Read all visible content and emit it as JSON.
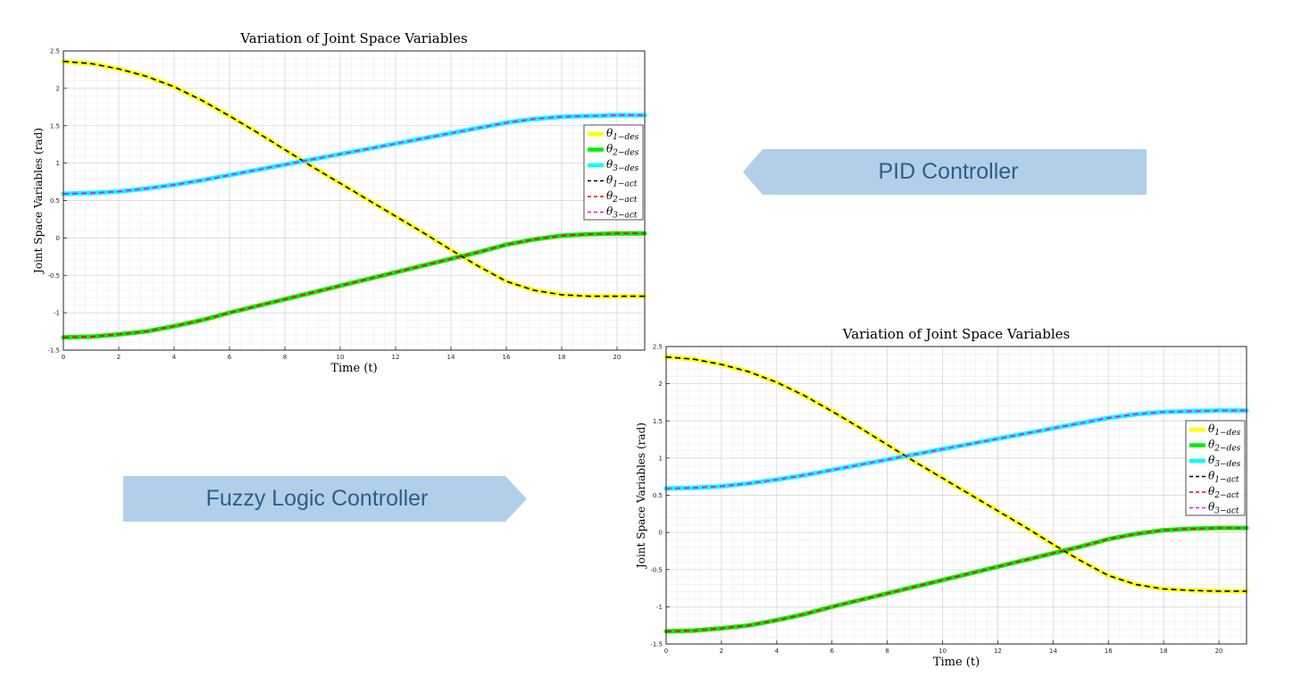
{
  "labels": {
    "pid": "PID Controller",
    "fuzzy": "Fuzzy Logic Controller"
  },
  "colors": {
    "arrow_fill": "#b2cfea",
    "arrow_text": "#2f5f86",
    "theta1_des": "#ffff00",
    "theta2_des": "#00ee00",
    "theta3_des": "#00ffff",
    "theta1_act": "#000000",
    "theta2_act": "#ff0000",
    "theta3_act": "#ff00ff"
  },
  "chart_data": [
    {
      "type": "line",
      "title": "Variation of Joint Space Variables",
      "xlabel": "Time (t)",
      "ylabel": "Joint Space Variables (rad)",
      "xlim": [
        0,
        21
      ],
      "ylim": [
        -1.5,
        2.5
      ],
      "xticks": [
        "0",
        "2",
        "4",
        "6",
        "8",
        "10",
        "12",
        "14",
        "16",
        "18",
        "20"
      ],
      "yticks": [
        "-1.5",
        "-1",
        "-0.5",
        "0",
        "0.5",
        "1",
        "1.5",
        "2",
        "2.5"
      ],
      "grid": true,
      "legend_position": "right",
      "x": [
        0,
        1,
        2,
        3,
        4,
        5,
        6,
        7,
        8,
        9,
        10,
        11,
        12,
        13,
        14,
        15,
        16,
        17,
        18,
        19,
        20,
        21
      ],
      "series": [
        {
          "name": "θ1−des",
          "style": "solid",
          "color": "#ffff00",
          "values": [
            2.36,
            2.33,
            2.26,
            2.16,
            2.02,
            1.84,
            1.63,
            1.41,
            1.18,
            0.95,
            0.73,
            0.51,
            0.29,
            0.07,
            -0.16,
            -0.38,
            -0.58,
            -0.7,
            -0.76,
            -0.78,
            -0.78,
            -0.78
          ]
        },
        {
          "name": "θ2−des",
          "style": "solid",
          "color": "#00ee00",
          "values": [
            -1.33,
            -1.32,
            -1.29,
            -1.25,
            -1.18,
            -1.1,
            -1.0,
            -0.91,
            -0.82,
            -0.73,
            -0.64,
            -0.55,
            -0.46,
            -0.37,
            -0.28,
            -0.19,
            -0.09,
            -0.02,
            0.03,
            0.05,
            0.06,
            0.06
          ]
        },
        {
          "name": "θ3−des",
          "style": "solid",
          "color": "#00ffff",
          "values": [
            0.59,
            0.6,
            0.62,
            0.66,
            0.71,
            0.77,
            0.84,
            0.91,
            0.98,
            1.05,
            1.12,
            1.19,
            1.26,
            1.33,
            1.4,
            1.47,
            1.54,
            1.59,
            1.62,
            1.63,
            1.64,
            1.64
          ]
        },
        {
          "name": "θ1−act",
          "style": "dashed",
          "color": "#000000",
          "values": [
            2.36,
            2.33,
            2.26,
            2.16,
            2.02,
            1.84,
            1.63,
            1.41,
            1.18,
            0.95,
            0.73,
            0.51,
            0.29,
            0.07,
            -0.16,
            -0.38,
            -0.58,
            -0.7,
            -0.76,
            -0.78,
            -0.78,
            -0.78
          ]
        },
        {
          "name": "θ2−act",
          "style": "dashed",
          "color": "#ff0000",
          "values": [
            -1.33,
            -1.32,
            -1.29,
            -1.25,
            -1.18,
            -1.1,
            -1.0,
            -0.91,
            -0.82,
            -0.73,
            -0.64,
            -0.55,
            -0.46,
            -0.37,
            -0.28,
            -0.19,
            -0.09,
            -0.02,
            0.03,
            0.05,
            0.06,
            0.06
          ]
        },
        {
          "name": "θ3−act",
          "style": "dashed",
          "color": "#ff00ff",
          "values": [
            0.59,
            0.6,
            0.62,
            0.66,
            0.71,
            0.77,
            0.84,
            0.91,
            0.98,
            1.05,
            1.12,
            1.19,
            1.26,
            1.33,
            1.4,
            1.47,
            1.54,
            1.59,
            1.62,
            1.63,
            1.64,
            1.64
          ]
        }
      ]
    },
    {
      "type": "line",
      "title": "Variation of Joint Space Variables",
      "xlabel": "Time (t)",
      "ylabel": "Joint Space Variables (rad)",
      "xlim": [
        0,
        21
      ],
      "ylim": [
        -1.5,
        2.5
      ],
      "xticks": [
        "0",
        "2",
        "4",
        "6",
        "8",
        "10",
        "12",
        "14",
        "16",
        "18",
        "20"
      ],
      "yticks": [
        "-1.5",
        "-1",
        "-0.5",
        "0",
        "0.5",
        "1",
        "1.5",
        "2",
        "2.5"
      ],
      "grid": true,
      "legend_position": "right",
      "x": [
        0,
        1,
        2,
        3,
        4,
        5,
        6,
        7,
        8,
        9,
        10,
        11,
        12,
        13,
        14,
        15,
        16,
        17,
        18,
        19,
        20,
        21
      ],
      "series": [
        {
          "name": "θ1−des",
          "style": "solid",
          "color": "#ffff00",
          "values": [
            2.36,
            2.33,
            2.26,
            2.16,
            2.02,
            1.84,
            1.63,
            1.41,
            1.18,
            0.95,
            0.73,
            0.51,
            0.29,
            0.07,
            -0.16,
            -0.38,
            -0.58,
            -0.7,
            -0.76,
            -0.78,
            -0.79,
            -0.79
          ]
        },
        {
          "name": "θ2−des",
          "style": "solid",
          "color": "#00ee00",
          "values": [
            -1.33,
            -1.32,
            -1.29,
            -1.25,
            -1.18,
            -1.1,
            -1.0,
            -0.91,
            -0.82,
            -0.73,
            -0.64,
            -0.55,
            -0.46,
            -0.37,
            -0.28,
            -0.19,
            -0.09,
            -0.02,
            0.03,
            0.05,
            0.06,
            0.06
          ]
        },
        {
          "name": "θ3−des",
          "style": "solid",
          "color": "#00ffff",
          "values": [
            0.59,
            0.6,
            0.62,
            0.66,
            0.71,
            0.77,
            0.84,
            0.91,
            0.98,
            1.05,
            1.12,
            1.19,
            1.26,
            1.33,
            1.4,
            1.47,
            1.54,
            1.59,
            1.62,
            1.63,
            1.64,
            1.64
          ]
        },
        {
          "name": "θ1−act",
          "style": "dashed",
          "color": "#000000",
          "values": [
            2.36,
            2.33,
            2.26,
            2.16,
            2.02,
            1.84,
            1.63,
            1.41,
            1.18,
            0.95,
            0.73,
            0.51,
            0.29,
            0.07,
            -0.16,
            -0.38,
            -0.58,
            -0.7,
            -0.76,
            -0.78,
            -0.79,
            -0.79
          ]
        },
        {
          "name": "θ2−act",
          "style": "dashed",
          "color": "#ff0000",
          "values": [
            -1.33,
            -1.32,
            -1.29,
            -1.25,
            -1.18,
            -1.1,
            -1.0,
            -0.91,
            -0.82,
            -0.73,
            -0.64,
            -0.55,
            -0.46,
            -0.37,
            -0.28,
            -0.19,
            -0.09,
            -0.02,
            0.03,
            0.05,
            0.06,
            0.06
          ]
        },
        {
          "name": "θ3−act",
          "style": "dashed",
          "color": "#ff00ff",
          "values": [
            0.59,
            0.6,
            0.62,
            0.66,
            0.71,
            0.77,
            0.84,
            0.91,
            0.98,
            1.05,
            1.12,
            1.19,
            1.26,
            1.33,
            1.4,
            1.47,
            1.54,
            1.59,
            1.62,
            1.63,
            1.64,
            1.64
          ]
        }
      ]
    }
  ]
}
